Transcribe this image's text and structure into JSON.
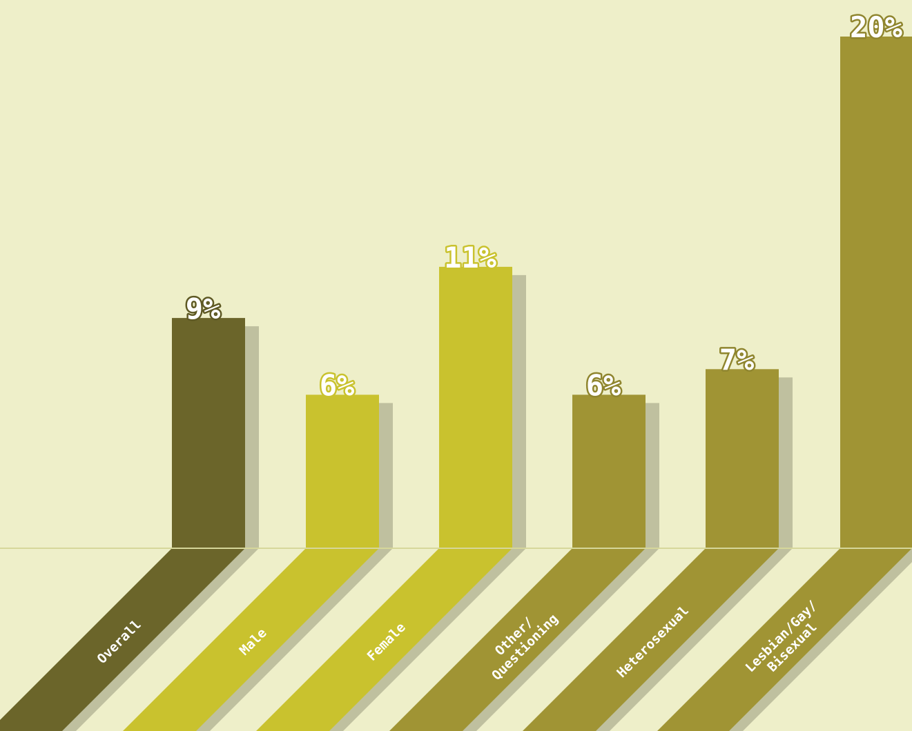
{
  "chart_data": {
    "type": "bar",
    "categories": [
      "Overall",
      "Male",
      "Female",
      "Other/ Questioning",
      "Heterosexual",
      "Lesbian/Gay/ Bisexual"
    ],
    "category_lines": [
      [
        "Overall"
      ],
      [
        "Male"
      ],
      [
        "Female"
      ],
      [
        "Other/",
        "Questioning"
      ],
      [
        "Heterosexual"
      ],
      [
        "Lesbian/Gay/",
        "Bisexual"
      ]
    ],
    "values": [
      9,
      6,
      11,
      6,
      7,
      20
    ],
    "value_labels": [
      "9%",
      "6%",
      "11%",
      "6%",
      "7%",
      "20%"
    ],
    "colors": [
      "#6B652A",
      "#C9C22E",
      "#C9C22E",
      "#A09434",
      "#A09434",
      "#A09434"
    ],
    "label_outline_colors": [
      "#5E5924",
      "#C9C22E",
      "#C9C22E",
      "#8F852E",
      "#8F852E",
      "#8F852E"
    ],
    "shadow_color": "#BFC09F",
    "baseline_color": "#D6D79A",
    "ylim": [
      0,
      20
    ],
    "title": "",
    "xlabel": "",
    "ylabel": "",
    "grid": false,
    "legend": "none"
  }
}
